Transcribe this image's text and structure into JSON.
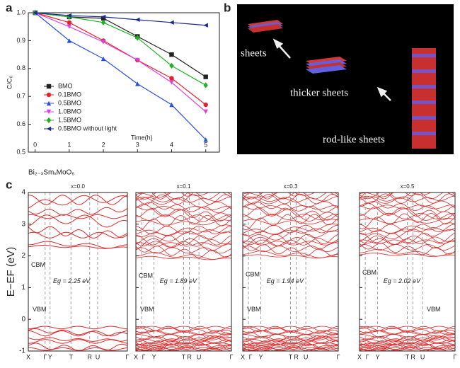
{
  "panel_labels": [
    "a",
    "b",
    "c"
  ],
  "panel_b": {
    "labels": [
      "sheets",
      "thicker sheets",
      "rod-like sheets"
    ]
  },
  "formula": "Bi₂₋ₓSmₓMoO₆",
  "chart_data": [
    {
      "type": "line",
      "x_label": "Time(h)",
      "y_label": "C/C₀",
      "x": [
        0,
        1,
        2,
        3,
        4,
        5
      ],
      "xlim": [
        -0.2,
        5.4
      ],
      "xticks": [
        0,
        1,
        2,
        3,
        4,
        5
      ],
      "ylim": [
        0.5,
        1.0
      ],
      "yticks": [
        0.5,
        0.6,
        0.7,
        0.8,
        0.9,
        {
          "value": 1,
          "label": "1.0"
        }
      ],
      "legend": "lower-left",
      "series": [
        {
          "name": "BMO",
          "color": "#222222",
          "marker": "square",
          "values": [
            1.0,
            0.985,
            0.98,
            0.915,
            0.85,
            0.77
          ]
        },
        {
          "name": "0.1BMO",
          "color": "#e8202a",
          "marker": "circle",
          "values": [
            1.0,
            0.965,
            0.9,
            0.83,
            0.765,
            0.67
          ]
        },
        {
          "name": "0.5BMO",
          "color": "#2a4fe0",
          "marker": "triangle-up",
          "values": [
            1.0,
            0.9,
            0.835,
            0.745,
            0.67,
            0.545
          ]
        },
        {
          "name": "1.0BMO",
          "color": "#e040e0",
          "marker": "triangle-down",
          "values": [
            1.0,
            0.95,
            0.895,
            0.83,
            0.75,
            0.645
          ]
        },
        {
          "name": "1.5BMO",
          "color": "#20b020",
          "marker": "diamond",
          "values": [
            1.0,
            0.985,
            0.965,
            0.91,
            0.81,
            0.74
          ]
        },
        {
          "name": "0.5BMO without light",
          "color": "#1a2a90",
          "marker": "triangle-left",
          "values": [
            1.0,
            0.99,
            0.985,
            0.975,
            0.965,
            0.955
          ]
        }
      ]
    },
    {
      "type": "band",
      "title": "x=0.0",
      "y_label": "E−EF (eV)",
      "ylim": [
        -1,
        4
      ],
      "yticks": [
        -1,
        0,
        1,
        2,
        3,
        4
      ],
      "kpoints": [
        "X",
        "Γ",
        "Y",
        "T",
        "R",
        "U",
        "Γ"
      ],
      "cbm": 2.2,
      "vbm": -0.1,
      "annotations": [
        "CBM",
        "VBM",
        "Eg = 2.25 eV"
      ]
    },
    {
      "type": "band",
      "title": "x=0.1",
      "ylim": [
        -1,
        4
      ],
      "kpoints": [
        "X",
        "Γ",
        "Y",
        "T",
        "R",
        "U",
        "Γ"
      ],
      "cbm": 1.85,
      "vbm": -0.1,
      "annotations": [
        "CBM",
        "VBM",
        "Eg = 1.89 eV"
      ]
    },
    {
      "type": "band",
      "title": "x=0.3",
      "ylim": [
        -1,
        4
      ],
      "kpoints": [
        "X",
        "Γ",
        "Y",
        "T",
        "R",
        "U",
        "Γ"
      ],
      "cbm": 1.9,
      "vbm": -0.1,
      "annotations": [
        "CBM",
        "VBM",
        "Eg = 1.94 eV"
      ]
    },
    {
      "type": "band",
      "title": "x=0.5",
      "ylim": [
        -1,
        4
      ],
      "kpoints": [
        "X",
        "Γ",
        "Y",
        "T",
        "R",
        "U",
        "Γ"
      ],
      "cbm": 1.95,
      "vbm": -0.1,
      "annotations": [
        "CBM",
        "VBM",
        "Eg = 2.02 eV"
      ]
    }
  ]
}
